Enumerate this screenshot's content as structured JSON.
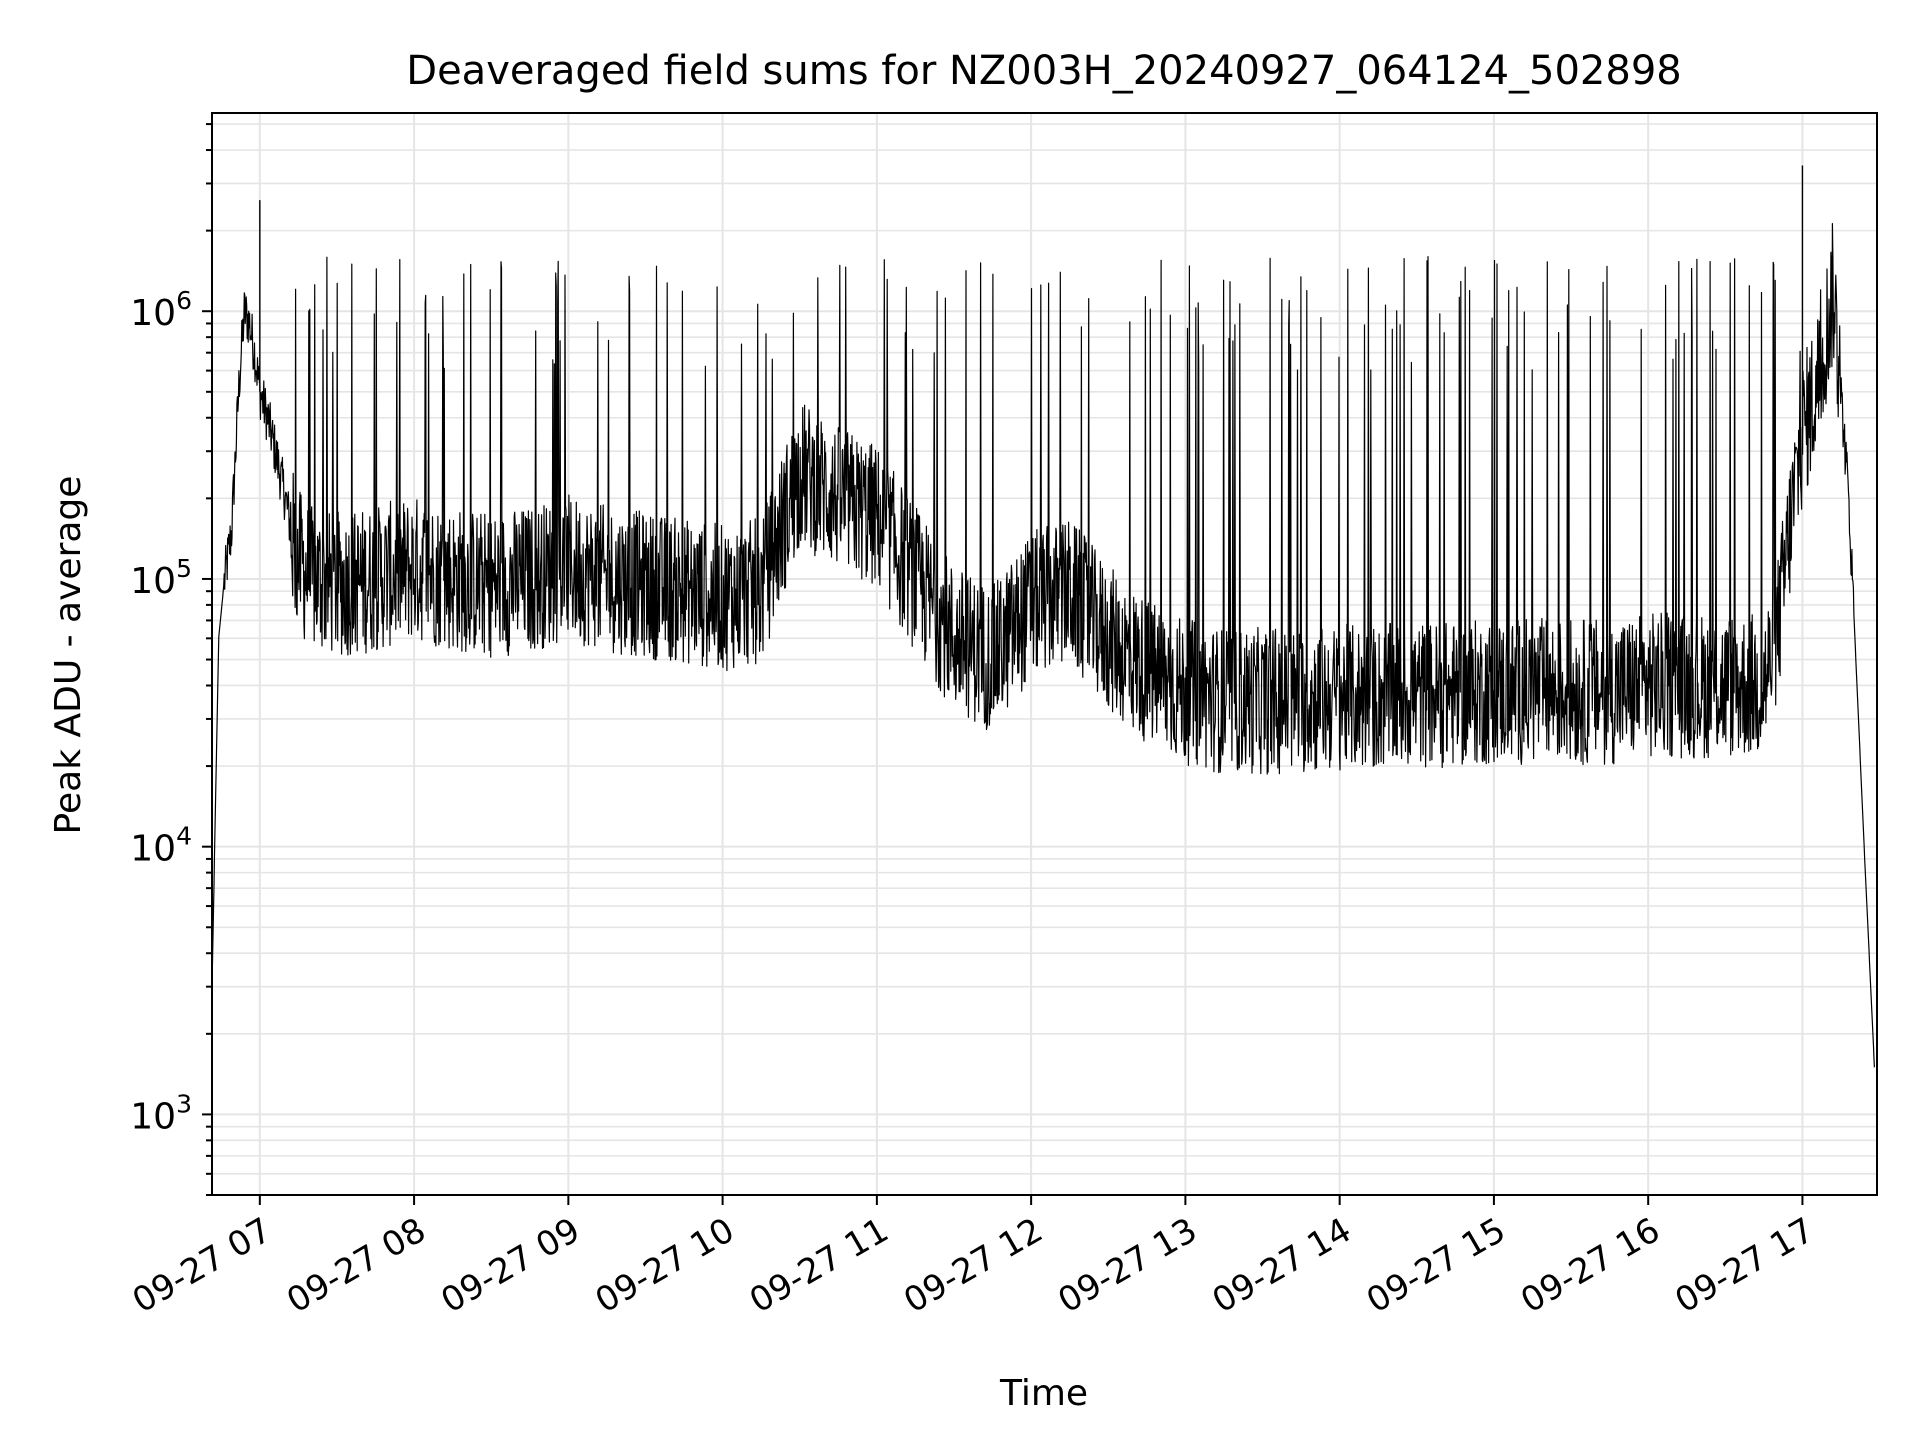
{
  "chart_data": {
    "type": "line",
    "title": "Deaveraged field sums for NZ003H_20240927_064124_502898",
    "xlabel": "Time",
    "ylabel": "Peak ADU - average",
    "yscale": "log",
    "ylim": [
      500,
      5500000
    ],
    "xlim": [
      "2024-09-27 06:41:24",
      "2024-09-27 17:29:00"
    ],
    "grid": true,
    "grid_minor": true,
    "line_color": "#000000",
    "grid_color": "#e5e5e5",
    "xticks": [
      {
        "t": "2024-09-27 07:00",
        "label": "09-27 07"
      },
      {
        "t": "2024-09-27 08:00",
        "label": "09-27 08"
      },
      {
        "t": "2024-09-27 09:00",
        "label": "09-27 09"
      },
      {
        "t": "2024-09-27 10:00",
        "label": "09-27 10"
      },
      {
        "t": "2024-09-27 11:00",
        "label": "09-27 11"
      },
      {
        "t": "2024-09-27 12:00",
        "label": "09-27 12"
      },
      {
        "t": "2024-09-27 13:00",
        "label": "09-27 13"
      },
      {
        "t": "2024-09-27 14:00",
        "label": "09-27 14"
      },
      {
        "t": "2024-09-27 15:00",
        "label": "09-27 15"
      },
      {
        "t": "2024-09-27 16:00",
        "label": "09-27 16"
      },
      {
        "t": "2024-09-27 17:00",
        "label": "09-27 17"
      }
    ],
    "yticks": [
      {
        "value": 1000,
        "base": "10",
        "exp": "3"
      },
      {
        "value": 10000,
        "base": "10",
        "exp": "4"
      },
      {
        "value": 100000,
        "base": "10",
        "exp": "5"
      },
      {
        "value": 1000000,
        "base": "10",
        "exp": "6"
      }
    ],
    "series": [
      {
        "x": [
          "2024-09-27 06:41:24",
          "2024-09-27 06:44",
          "2024-09-27 06:46",
          "2024-09-27 06:49",
          "2024-09-27 06:52",
          "2024-09-27 06:54",
          "2024-09-27 06:56",
          "2024-09-27 06:58",
          "2024-09-27 07:00",
          "2024-09-27 07:03",
          "2024-09-27 07:06",
          "2024-09-27 07:10",
          "2024-09-27 07:14",
          "2024-09-27 07:20",
          "2024-09-27 07:30",
          "2024-09-27 07:45",
          "2024-09-27 08:00",
          "2024-09-27 08:15",
          "2024-09-27 08:30",
          "2024-09-27 08:45",
          "2024-09-27 09:00",
          "2024-09-27 09:15",
          "2024-09-27 09:30",
          "2024-09-27 09:45",
          "2024-09-27 10:00",
          "2024-09-27 10:15",
          "2024-09-27 10:30",
          "2024-09-27 10:45",
          "2024-09-27 11:00",
          "2024-09-27 11:15",
          "2024-09-27 11:30",
          "2024-09-27 11:45",
          "2024-09-27 12:00",
          "2024-09-27 12:15",
          "2024-09-27 12:30",
          "2024-09-27 12:45",
          "2024-09-27 13:00",
          "2024-09-27 13:15",
          "2024-09-27 13:30",
          "2024-09-27 13:45",
          "2024-09-27 14:00",
          "2024-09-27 14:15",
          "2024-09-27 14:30",
          "2024-09-27 14:45",
          "2024-09-27 15:00",
          "2024-09-27 15:15",
          "2024-09-27 15:30",
          "2024-09-27 15:45",
          "2024-09-27 16:00",
          "2024-09-27 16:15",
          "2024-09-27 16:30",
          "2024-09-27 16:45",
          "2024-09-27 16:50",
          "2024-09-27 16:55",
          "2024-09-27 17:00",
          "2024-09-27 17:05",
          "2024-09-27 17:08",
          "2024-09-27 17:12",
          "2024-09-27 17:18",
          "2024-09-27 17:24",
          "2024-09-27 17:28"
        ],
        "baseline": [
          3000,
          60000,
          95000,
          150000,
          550000,
          1000000,
          900000,
          700000,
          500000,
          400000,
          300000,
          200000,
          120000,
          100000,
          95000,
          100000,
          110000,
          100000,
          95000,
          100000,
          110000,
          100000,
          95000,
          90000,
          85000,
          90000,
          250000,
          200000,
          170000,
          100000,
          60000,
          50000,
          80000,
          90000,
          60000,
          45000,
          38000,
          35000,
          35000,
          35000,
          36000,
          36000,
          37000,
          37000,
          38000,
          38000,
          38000,
          38000,
          40000,
          40000,
          40000,
          40000,
          60000,
          150000,
          350000,
          500000,
          700000,
          1200000,
          200000,
          10000,
          1500
        ]
      }
    ]
  }
}
